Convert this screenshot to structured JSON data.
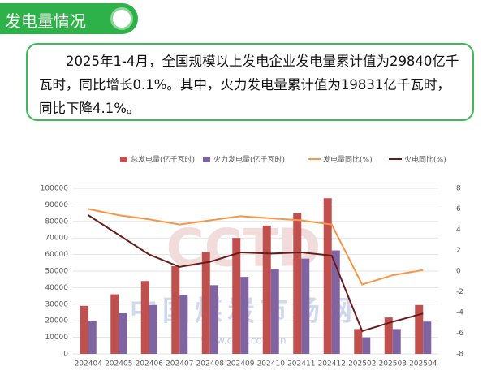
{
  "header": {
    "title": "发电量情况"
  },
  "text": "2025年1-4月，全国规模以上发电企业发电量累计值为29840亿千瓦时，同比增长0.1%。其中，火力发电量累计值为19831亿千瓦时，同比下降4.1%。",
  "chart_data": {
    "type": "combo",
    "categories": [
      "202404",
      "202405",
      "202406",
      "202407",
      "202408",
      "202409",
      "202410",
      "202411",
      "202412",
      "202502",
      "202503",
      "202504"
    ],
    "series": [
      {
        "name": "总发电量(亿千瓦时)",
        "type": "bar",
        "color": "#c0504d",
        "values": [
          29000,
          36000,
          44000,
          53000,
          61500,
          70000,
          77500,
          85000,
          94000,
          15000,
          22000,
          29500
        ]
      },
      {
        "name": "火力发电量(亿千瓦时)",
        "type": "bar",
        "color": "#8064a2",
        "values": [
          20000,
          24500,
          29500,
          35500,
          41500,
          46500,
          51500,
          57500,
          62500,
          10000,
          15000,
          19500
        ]
      },
      {
        "name": "发电量同比(%)",
        "type": "line",
        "axis": "y2",
        "color": "#f79646",
        "values": [
          6.0,
          5.4,
          5.0,
          4.5,
          4.9,
          5.3,
          5.1,
          4.9,
          4.5,
          -1.3,
          -0.4,
          0.1
        ]
      },
      {
        "name": "火电同比(%)",
        "type": "line",
        "axis": "y2",
        "color": "#6b1a1a",
        "values": [
          5.4,
          3.5,
          1.6,
          0.4,
          0.9,
          1.8,
          1.7,
          1.8,
          1.5,
          -5.8,
          -4.9,
          -4.1
        ]
      }
    ],
    "ylim": [
      0,
      100000
    ],
    "yticks": [
      0,
      10000,
      20000,
      30000,
      40000,
      50000,
      60000,
      70000,
      80000,
      90000,
      100000
    ],
    "y2lim": [
      -8,
      8
    ],
    "y2ticks": [
      -8,
      -6,
      -4,
      -2,
      0,
      2,
      4,
      6,
      8
    ],
    "grid": true,
    "legend": "top",
    "watermark": {
      "logo": "CCTD",
      "name": "中国煤炭市场网",
      "url": "www.cctd.com.cn"
    }
  }
}
